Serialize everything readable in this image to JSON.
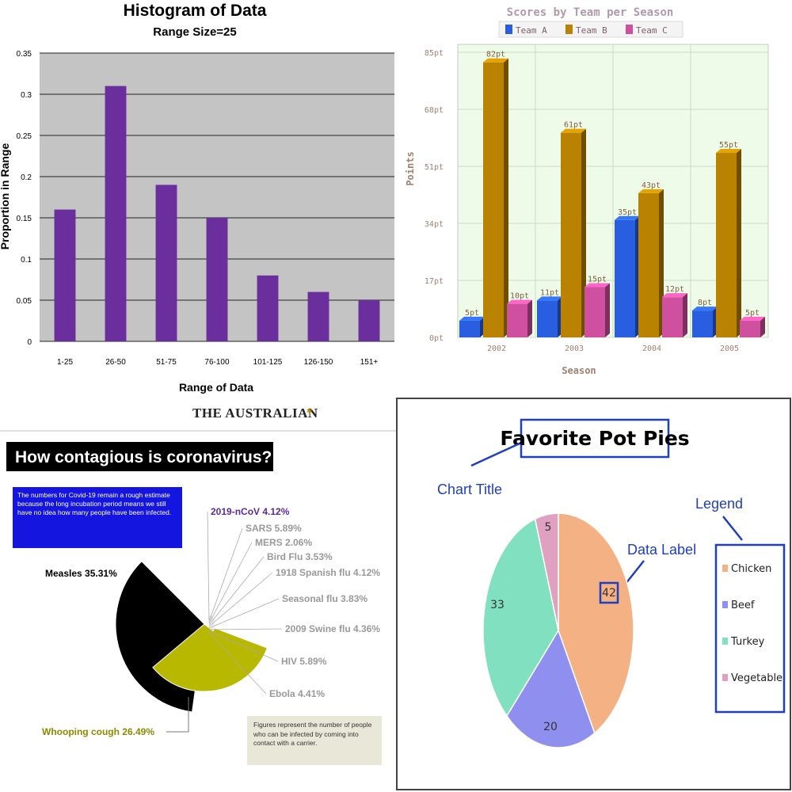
{
  "chart_data": [
    {
      "type": "bar",
      "title": "Histogram of Data",
      "subtitle": "Range Size=25",
      "xlabel": "Range of Data",
      "ylabel": "Proportion in Range",
      "categories": [
        "1-25",
        "26-50",
        "51-75",
        "76-100",
        "101-125",
        "126-150",
        "151+"
      ],
      "values": [
        0.16,
        0.31,
        0.19,
        0.15,
        0.08,
        0.06,
        0.05
      ],
      "ylim": [
        0,
        0.35
      ],
      "yticks": [
        "0",
        "0.05",
        "0.1",
        "0.15",
        "0.2",
        "0.25",
        "0.3",
        "0.35"
      ],
      "grid": true,
      "colors": {
        "bar": "#6a2f9d",
        "plot_bg": "#c4c4c4"
      }
    },
    {
      "type": "bar",
      "title": "Scores by Team per Season",
      "xlabel": "Season",
      "ylabel": "Points",
      "categories": [
        "2002",
        "2003",
        "2004",
        "2005"
      ],
      "series": [
        {
          "name": "Team A",
          "values": [
            5,
            11,
            35,
            8
          ],
          "labels": [
            "5pt",
            "11pt",
            "35pt",
            "8pt"
          ],
          "color": "#2a5ee0"
        },
        {
          "name": "Team B",
          "values": [
            82,
            61,
            43,
            55
          ],
          "labels": [
            "82pt",
            "61pt",
            "43pt",
            "55pt"
          ],
          "color": "#b98200"
        },
        {
          "name": "Team C",
          "values": [
            10,
            15,
            12,
            5
          ],
          "labels": [
            "10pt",
            "15pt",
            "12pt",
            "5pt"
          ],
          "color": "#d050a0"
        }
      ],
      "ylim": [
        0,
        85
      ],
      "yticks": [
        "0pt",
        "17pt",
        "34pt",
        "51pt",
        "68pt",
        "85pt"
      ],
      "grid": true,
      "legend": "top",
      "colors": {
        "plot_bg": "#eefbe9"
      }
    },
    {
      "type": "pie",
      "title": "How contagious is coronavirus?",
      "source": "THE AUSTRALIAN",
      "note": "The numbers for Covid-19 remain a rough estimate because the long incubation period means we still have no idea how many people have been infected.",
      "footnote": "Figures represent the number of people who can be infected by coming into contact with a carrier.",
      "slices": [
        {
          "label": "Measles 35.31%",
          "value": 35.31,
          "color": "#000000"
        },
        {
          "label": "Whooping cough 26.49%",
          "value": 26.49,
          "color": "#b9b800"
        },
        {
          "label": "2019-nCoV 4.12%",
          "value": 4.12,
          "color": "#d9d9d9"
        },
        {
          "label": "SARS 5.89%",
          "value": 5.89,
          "color": "#d9d9d9"
        },
        {
          "label": "MERS 2.06%",
          "value": 2.06,
          "color": "#d9d9d9"
        },
        {
          "label": "Bird Flu 3.53%",
          "value": 3.53,
          "color": "#d9d9d9"
        },
        {
          "label": "1918 Spanish flu 4.12%",
          "value": 4.12,
          "color": "#d9d9d9"
        },
        {
          "label": "Seasonal flu 3.83%",
          "value": 3.83,
          "color": "#d9d9d9"
        },
        {
          "label": "2009 Swine flu 4.36%",
          "value": 4.36,
          "color": "#d9d9d9"
        },
        {
          "label": "HIV 5.89%",
          "value": 5.89,
          "color": "#d9d9d9"
        },
        {
          "label": "Ebola 4.41%",
          "value": 4.41,
          "color": "#d9d9d9"
        }
      ],
      "colors": {
        "highlight_text": "#5a2a9a",
        "note_bg": "#1515e0",
        "title_bg": "#000000"
      }
    },
    {
      "type": "pie",
      "title": "Favorite Pot Pies",
      "slices": [
        {
          "label": "Chicken",
          "value": 42,
          "color": "#f4b183"
        },
        {
          "label": "Beef",
          "value": 20,
          "color": "#8f8ff0"
        },
        {
          "label": "Turkey",
          "value": 33,
          "color": "#80e0c0"
        },
        {
          "label": "Vegetable",
          "value": 5,
          "color": "#e0a0c0"
        }
      ],
      "annotations": {
        "chart_title": "Chart Title",
        "legend": "Legend",
        "data_label": "Data Label"
      },
      "legend": "right",
      "colors": {
        "annotation": "#1f3fbf"
      }
    }
  ]
}
